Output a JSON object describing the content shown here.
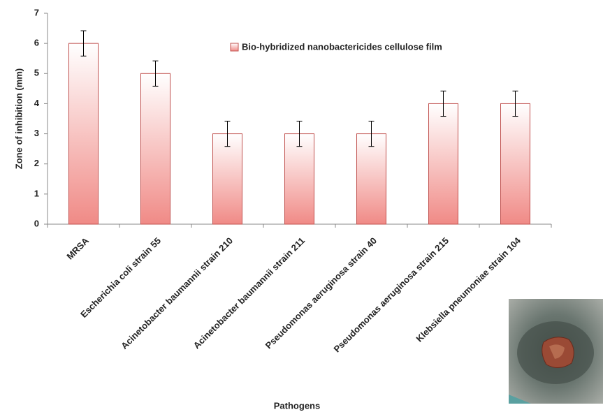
{
  "chart_data": {
    "type": "bar",
    "x_label": "Pathogens",
    "y_label": "Zone of inhibition (mm)",
    "categories": [
      "MRSA",
      "Escherichia coli strain 55",
      "Acinetobacter baumannii strain 210",
      "Acinetobacter baumannii strain 211",
      "Pseudomonas aeruginosa strain 40",
      "Pseudomonas aeruginosa strain 215",
      "Klebsiella pneumoniae strain 104"
    ],
    "series": [
      {
        "name": "Bio-hybridized nanobactericides cellulose film",
        "color": "#f08a86",
        "values": [
          6,
          5,
          3,
          3,
          3,
          4,
          4
        ],
        "errors": [
          0.42,
          0.42,
          0.42,
          0.42,
          0.42,
          0.42,
          0.42
        ]
      }
    ],
    "ylim": [
      0,
      7
    ],
    "yticks": [
      0,
      1,
      2,
      3,
      4,
      5,
      6,
      7
    ],
    "grid": false
  }
}
